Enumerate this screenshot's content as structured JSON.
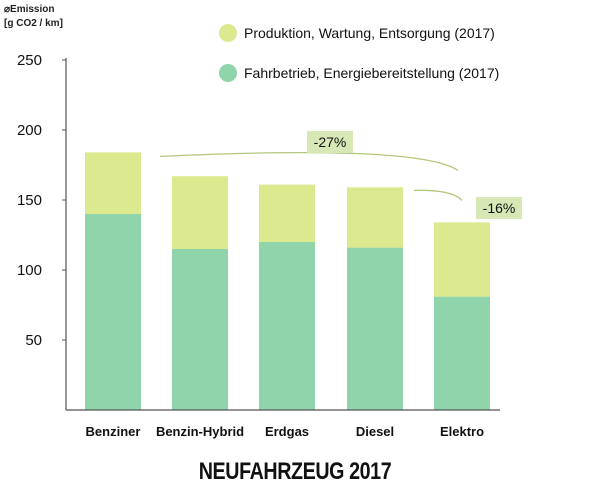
{
  "chart_data": {
    "type": "bar",
    "stacked": true,
    "ylabel": [
      "⌀Emission",
      "[g CO2 / km]"
    ],
    "ylim": [
      0,
      250
    ],
    "yticks": [
      50,
      100,
      150,
      200,
      250
    ],
    "categories": [
      "Benziner",
      "Benzin-Hybrid",
      "Erdgas",
      "Diesel",
      "Elektro"
    ],
    "series": [
      {
        "name": "Fahrbetrieb, Energiebereitstellung (2017)",
        "values": [
          140,
          115,
          120,
          116,
          81
        ],
        "color": "#8fd4ab"
      },
      {
        "name": "Produktion, Wartung, Entsorgung (2017)",
        "values": [
          44,
          52,
          41,
          43,
          53
        ],
        "color": "#dde98f"
      }
    ],
    "annotations": [
      {
        "text": "-27%",
        "from": "Benziner",
        "to": "Elektro"
      },
      {
        "text": "-16%",
        "from": "Diesel",
        "to": "Elektro"
      }
    ],
    "legend_position": "top-right",
    "grid": false
  },
  "footer": {
    "title": "NEUFAHRZEUG 2017"
  }
}
